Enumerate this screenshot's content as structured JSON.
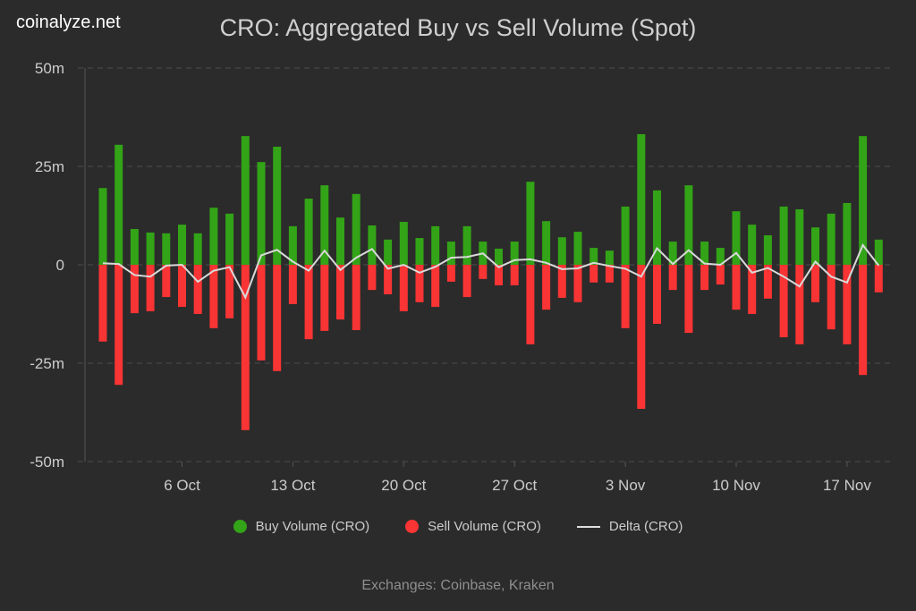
{
  "logo": "coinalyze.net",
  "footer": "Exchanges: Coinbase, Kraken",
  "colors": {
    "background": "#2b2b2b",
    "buy": "#33a317",
    "sell": "#f93434",
    "delta": "#d9d9d9"
  },
  "chart_data": {
    "type": "bar",
    "title": "CRO: Aggregated Buy vs Sell Volume (Spot)",
    "x_start": "1 Oct",
    "x_end": "19 Nov",
    "x_ticks": [
      "6 Oct",
      "13 Oct",
      "20 Oct",
      "27 Oct",
      "3 Nov",
      "10 Nov",
      "17 Nov"
    ],
    "x_tick_index": [
      5,
      12,
      19,
      26,
      33,
      40,
      47
    ],
    "y_ticks": [
      "50m",
      "25m",
      "0",
      "-25m",
      "-50m"
    ],
    "y_tick_values": [
      50,
      25,
      0,
      -25,
      -50
    ],
    "ylim": [
      -50,
      50
    ],
    "y_unit": "millions",
    "grid": true,
    "legend_position": "bottom",
    "series": [
      {
        "name": "Buy Volume (CRO)",
        "type": "bar",
        "values": [
          19.5,
          30.5,
          9.1,
          8.2,
          8.0,
          10.2,
          8.0,
          14.5,
          13.0,
          32.7,
          26.1,
          30.0,
          9.8,
          16.8,
          20.2,
          12.0,
          18.0,
          10.0,
          6.4,
          10.9,
          6.8,
          9.8,
          5.9,
          9.8,
          5.9,
          4.1,
          5.9,
          21.1,
          11.1,
          7.0,
          8.4,
          4.3,
          3.6,
          14.8,
          33.2,
          18.9,
          5.9,
          20.2,
          5.9,
          4.3,
          13.6,
          10.2,
          7.5,
          14.8,
          14.1,
          9.5,
          13.0,
          15.7,
          32.7,
          6.4
        ]
      },
      {
        "name": "Sell Volume (CRO)",
        "type": "bar",
        "values": [
          -19.5,
          -30.5,
          -12.3,
          -11.8,
          -8.2,
          -10.7,
          -12.5,
          -16.1,
          -13.6,
          -42.0,
          -24.3,
          -27.0,
          -10.0,
          -18.9,
          -16.8,
          -13.9,
          -16.6,
          -6.4,
          -7.5,
          -11.8,
          -9.5,
          -10.7,
          -4.3,
          -8.2,
          -3.6,
          -5.2,
          -5.2,
          -20.2,
          -11.4,
          -8.4,
          -9.5,
          -4.5,
          -4.5,
          -16.1,
          -36.6,
          -15.0,
          -6.4,
          -17.3,
          -6.4,
          -5.0,
          -11.4,
          -12.5,
          -8.6,
          -18.4,
          -20.2,
          -9.5,
          -16.4,
          -20.2,
          -28.0,
          -7.0
        ]
      },
      {
        "name": "Delta (CRO)",
        "type": "line",
        "values": [
          0.4,
          0.2,
          -2.6,
          -3.0,
          -0.2,
          0,
          -4.3,
          -1.5,
          -0.6,
          -8.3,
          2.4,
          3.8,
          0.8,
          -1.5,
          3.6,
          -1.3,
          1.8,
          4.0,
          -1.0,
          0,
          -2.0,
          -0.5,
          1.8,
          2.0,
          2.9,
          -0.6,
          1.2,
          1.4,
          0.5,
          -1.1,
          -0.9,
          0.5,
          -0.3,
          -1.0,
          -3.0,
          4.2,
          0.2,
          3.7,
          0.3,
          0,
          3.0,
          -2.0,
          -0.8,
          -3.0,
          -5.5,
          0.8,
          -3.0,
          -4.5,
          5.0,
          -0.2
        ]
      }
    ]
  }
}
